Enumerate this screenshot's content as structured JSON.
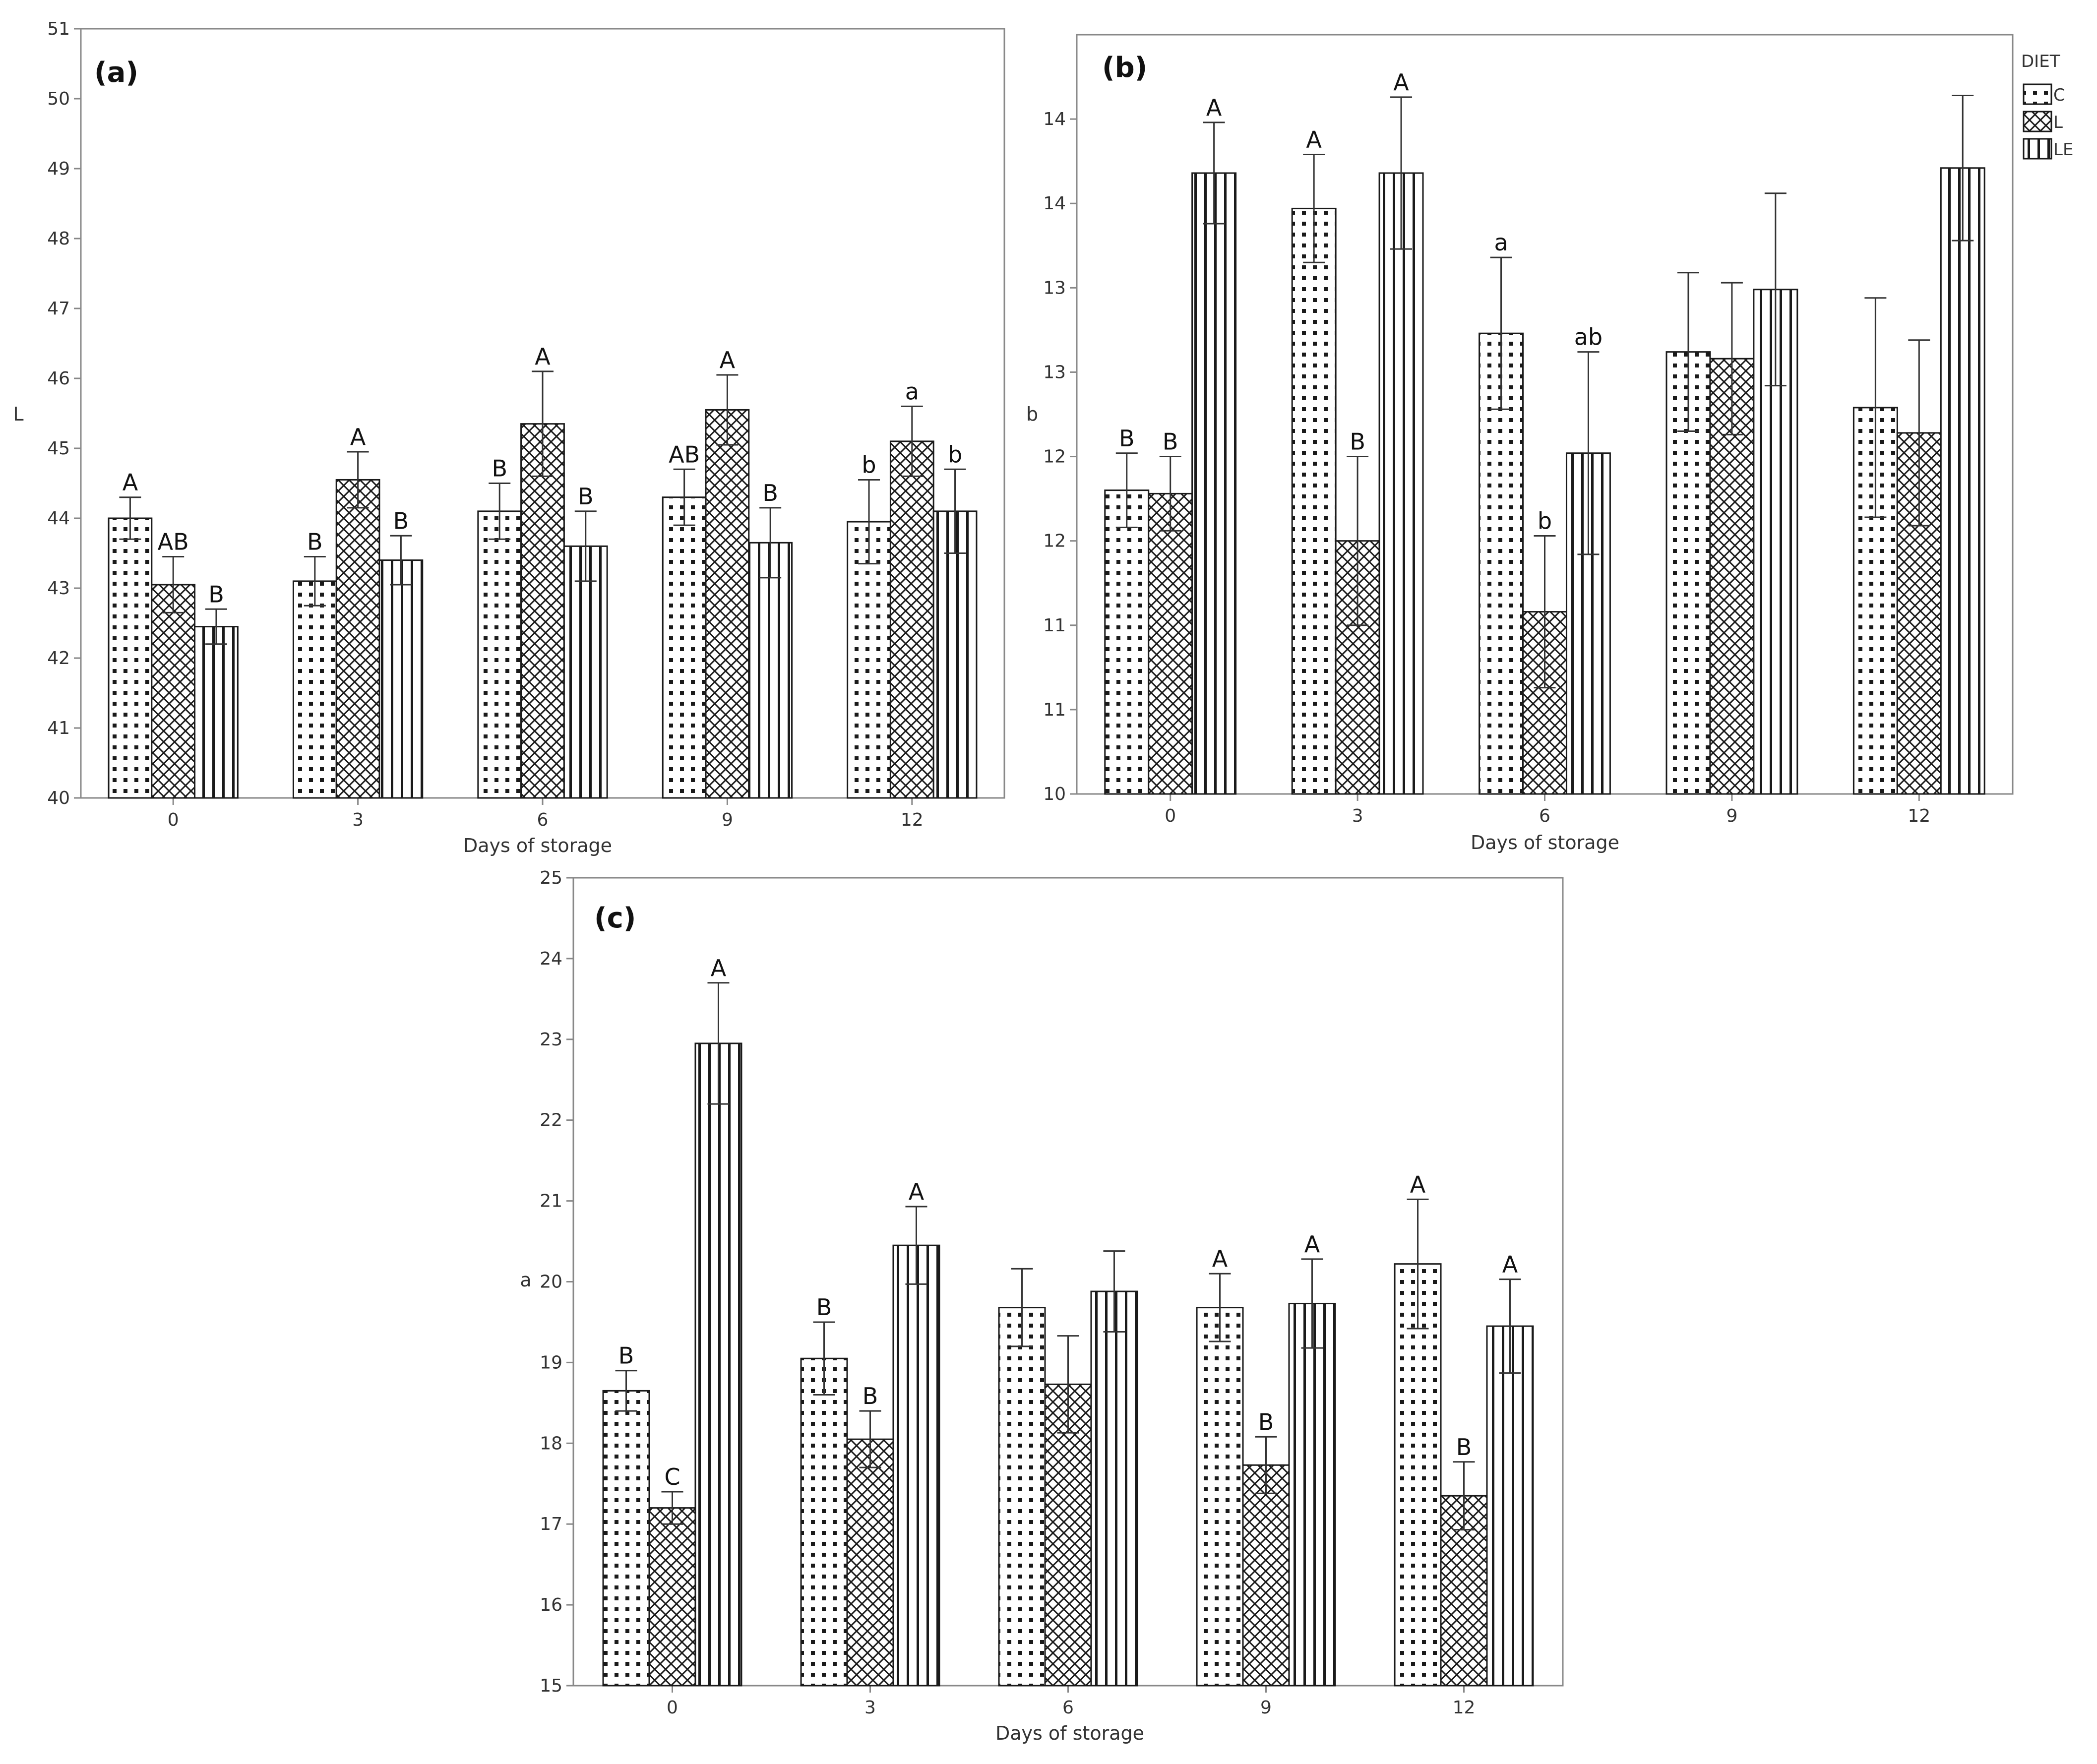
{
  "legend": {
    "title": "DIET",
    "entries": [
      {
        "name": "C",
        "pattern": "dots"
      },
      {
        "name": "L",
        "pattern": "cross"
      },
      {
        "name": "LE",
        "pattern": "vlines"
      }
    ]
  },
  "colors": {
    "ink": "#1a1a1a",
    "frame": "#888888",
    "background": "#ffffff"
  },
  "chart_data": [
    {
      "type": "bar",
      "panel": "(a)",
      "xlabel": "Days of storage",
      "ylabel": "L",
      "categories": [
        "0",
        "3",
        "6",
        "9",
        "12"
      ],
      "ylim": [
        40,
        51
      ],
      "yticks": [
        40,
        41,
        42,
        43,
        44,
        45,
        46,
        47,
        48,
        49,
        50,
        51
      ],
      "yticklabels": [
        "40",
        "41",
        "42",
        "43",
        "44",
        "45",
        "46",
        "47",
        "48",
        "49",
        "50",
        "51"
      ],
      "series": [
        {
          "name": "C",
          "values": [
            44.0,
            43.1,
            44.1,
            44.3,
            43.95
          ],
          "errors": [
            0.3,
            0.35,
            0.4,
            0.4,
            0.6
          ],
          "labels": [
            "A",
            "B",
            "B",
            "AB",
            "b"
          ]
        },
        {
          "name": "L",
          "values": [
            43.05,
            44.55,
            45.35,
            45.55,
            45.1
          ],
          "errors": [
            0.4,
            0.4,
            0.75,
            0.5,
            0.5
          ],
          "labels": [
            "AB",
            "A",
            "A",
            "A",
            "a"
          ]
        },
        {
          "name": "LE",
          "values": [
            42.45,
            43.4,
            43.6,
            43.65,
            44.1
          ],
          "errors": [
            0.25,
            0.35,
            0.5,
            0.5,
            0.6
          ],
          "labels": [
            "B",
            "B",
            "B",
            "B",
            "b"
          ]
        }
      ]
    },
    {
      "type": "bar",
      "panel": "(b)",
      "xlabel": "Days of storage",
      "ylabel": "b",
      "categories": [
        "0",
        "3",
        "6",
        "9",
        "12"
      ],
      "ylim": [
        10,
        14.5
      ],
      "yticks": [
        10,
        10.5,
        11,
        11.5,
        12,
        12.5,
        13,
        13.5,
        14
      ],
      "yticklabels": [
        "10",
        "11",
        "11",
        "12",
        "12",
        "13",
        "13",
        "14",
        "14"
      ],
      "series": [
        {
          "name": "C",
          "values": [
            11.8,
            13.47,
            12.73,
            12.62,
            12.29
          ],
          "errors": [
            0.22,
            0.32,
            0.45,
            0.47,
            0.65
          ],
          "labels": [
            "B",
            "A",
            "a",
            "",
            ""
          ]
        },
        {
          "name": "L",
          "values": [
            11.78,
            11.5,
            11.08,
            12.58,
            12.14
          ],
          "errors": [
            0.22,
            0.5,
            0.45,
            0.45,
            0.55
          ],
          "labels": [
            "B",
            "B",
            "b",
            "",
            ""
          ]
        },
        {
          "name": "LE",
          "values": [
            13.68,
            13.68,
            12.02,
            12.99,
            13.71
          ],
          "errors": [
            0.3,
            0.45,
            0.6,
            0.57,
            0.43
          ],
          "labels": [
            "A",
            "A",
            "ab",
            "",
            ""
          ]
        }
      ]
    },
    {
      "type": "bar",
      "panel": "(c)",
      "xlabel": "Days of storage",
      "ylabel": "a",
      "categories": [
        "0",
        "3",
        "6",
        "9",
        "12"
      ],
      "ylim": [
        15,
        25
      ],
      "yticks": [
        15,
        16,
        17,
        18,
        19,
        20,
        21,
        22,
        23,
        24,
        25
      ],
      "yticklabels": [
        "15",
        "16",
        "17",
        "18",
        "19",
        "20",
        "21",
        "22",
        "23",
        "24",
        "25"
      ],
      "series": [
        {
          "name": "C",
          "values": [
            18.65,
            19.05,
            19.68,
            19.68,
            20.22
          ],
          "errors": [
            0.25,
            0.45,
            0.48,
            0.42,
            0.8
          ],
          "labels": [
            "B",
            "B",
            "",
            "A",
            "A"
          ]
        },
        {
          "name": "L",
          "values": [
            17.2,
            18.05,
            18.73,
            17.73,
            17.35
          ],
          "errors": [
            0.2,
            0.35,
            0.6,
            0.35,
            0.42
          ],
          "labels": [
            "C",
            "B",
            "",
            "B",
            "B"
          ]
        },
        {
          "name": "LE",
          "values": [
            22.95,
            20.45,
            19.88,
            19.73,
            19.45
          ],
          "errors": [
            0.75,
            0.48,
            0.5,
            0.55,
            0.58
          ],
          "labels": [
            "A",
            "A",
            "",
            "A",
            "A"
          ]
        }
      ]
    }
  ]
}
